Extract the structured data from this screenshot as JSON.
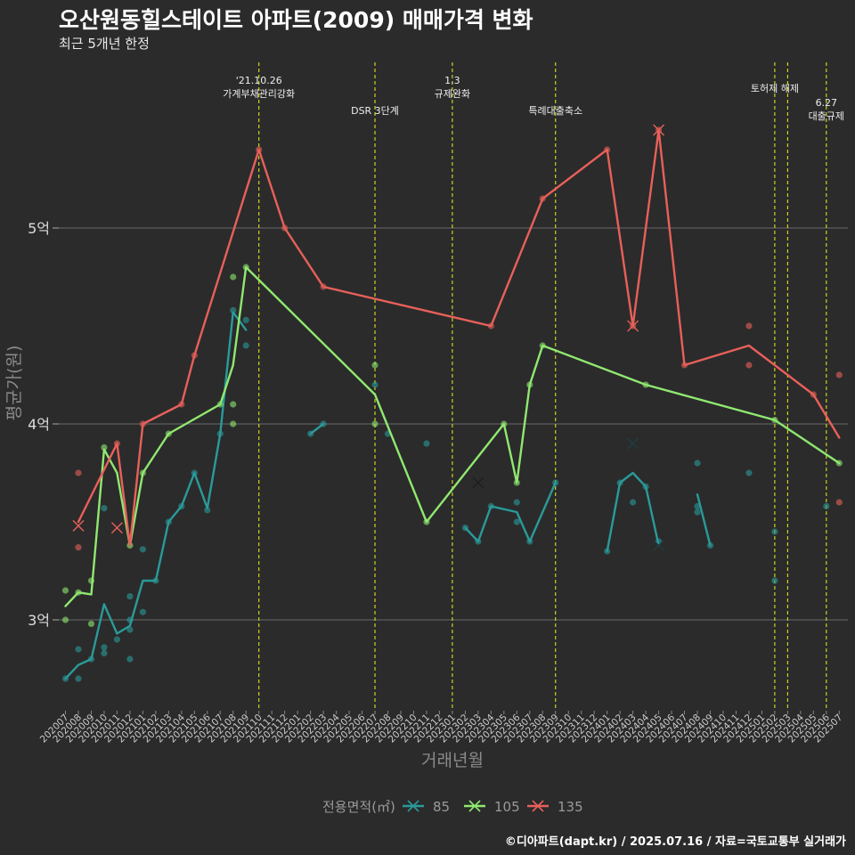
{
  "title": "오산원동힐스테이트 아파트(2009) 매매가격 변화",
  "subtitle": "최근 5개년 한정",
  "caption": "©디아파트(dapt.kr) / 2025.07.16 / 자료=국토교통부 실거래가",
  "colors": {
    "background": "#2b2b2b",
    "grid": "#6a6a6a",
    "event_line": "#d8e020",
    "s85": "#2a9a9a",
    "s105": "#90e870",
    "s135": "#e8605a"
  },
  "chart_data": {
    "type": "line",
    "xlabel": "거래년월",
    "ylabel": "평균가(원)",
    "y_ticks": [
      {
        "value": 3.0,
        "label": "3억"
      },
      {
        "value": 4.0,
        "label": "4억"
      },
      {
        "value": 5.0,
        "label": "5억"
      }
    ],
    "ylim": [
      2.6,
      5.75
    ],
    "grid": true,
    "legend_position": "bottom",
    "legend_title": "전용면적(㎡)",
    "x_labels": [
      "202007",
      "202008",
      "202009",
      "202010",
      "202011",
      "202012",
      "202101",
      "202102",
      "202103",
      "202104",
      "202105",
      "202106",
      "202107",
      "202108",
      "202109",
      "202110",
      "202111",
      "202112",
      "202201",
      "202202",
      "202203",
      "202204",
      "202205",
      "202206",
      "202207",
      "202208",
      "202209",
      "202210",
      "202211",
      "202212",
      "202301",
      "202302",
      "202303",
      "202304",
      "202305",
      "202306",
      "202307",
      "202308",
      "202309",
      "202310",
      "202311",
      "202312",
      "202401",
      "202402",
      "202403",
      "202404",
      "202405",
      "202406",
      "202407",
      "202408",
      "202409",
      "202410",
      "202411",
      "202412",
      "202501",
      "202502",
      "202503",
      "202504",
      "202505",
      "202506",
      "202507"
    ],
    "events": [
      {
        "x": "202110",
        "label": "'21.10.26\n가계부채관리강화",
        "level": 0
      },
      {
        "x": "202207",
        "label": "DSR 3단계",
        "level": 2
      },
      {
        "x": "202301",
        "label": "1.3\n규제완화",
        "level": 0
      },
      {
        "x": "202309",
        "label": "특례대출축소",
        "level": 2
      },
      {
        "x": "202502",
        "label": "토허제 해제",
        "level": 1
      },
      {
        "x": "202503",
        "label": "",
        "level": 1
      },
      {
        "x": "202506",
        "label": "6.27\n대출규제",
        "level": 3
      }
    ],
    "series": [
      {
        "name": "85",
        "color": "#2a9a9a",
        "segments": [
          [
            [
              "202007",
              2.7
            ],
            [
              "202008",
              2.77
            ],
            [
              "202009",
              2.8
            ],
            [
              "202010",
              3.08
            ],
            [
              "202011",
              2.93
            ],
            [
              "202012",
              2.97
            ],
            [
              "202101",
              3.2
            ],
            [
              "202102",
              3.2
            ],
            [
              "202103",
              3.5
            ],
            [
              "202104",
              3.58
            ],
            [
              "202105",
              3.75
            ],
            [
              "202106",
              3.57
            ],
            [
              "202107",
              3.95
            ],
            [
              "202108",
              4.57
            ],
            [
              "202109",
              4.48
            ]
          ],
          [
            [
              "202202",
              3.95
            ],
            [
              "202203",
              4.0
            ]
          ],
          [
            [
              "202302",
              3.47
            ],
            [
              "202303",
              3.4
            ],
            [
              "202304",
              3.58
            ],
            [
              "202306",
              3.55
            ],
            [
              "202307",
              3.4
            ],
            [
              "202309",
              3.7
            ]
          ],
          [
            [
              "202401",
              3.35
            ],
            [
              "202402",
              3.7
            ],
            [
              "202403",
              3.75
            ],
            [
              "202404",
              3.68
            ],
            [
              "202405",
              3.38
            ]
          ],
          [
            [
              "202408",
              3.64
            ],
            [
              "202409",
              3.38
            ]
          ]
        ],
        "points": [
          [
            "202007",
            2.7
          ],
          [
            "202008",
            2.7
          ],
          [
            "202008",
            2.85
          ],
          [
            "202009",
            2.8
          ],
          [
            "202010",
            2.83
          ],
          [
            "202010",
            2.86
          ],
          [
            "202010",
            3.57
          ],
          [
            "202011",
            2.9
          ],
          [
            "202012",
            2.8
          ],
          [
            "202012",
            2.95
          ],
          [
            "202012",
            3.0
          ],
          [
            "202012",
            3.12
          ],
          [
            "202101",
            3.04
          ],
          [
            "202101",
            3.36
          ],
          [
            "202102",
            3.2
          ],
          [
            "202103",
            3.5
          ],
          [
            "202104",
            3.58
          ],
          [
            "202105",
            3.75
          ],
          [
            "202106",
            3.56
          ],
          [
            "202107",
            3.95
          ],
          [
            "202108",
            4.58
          ],
          [
            "202109",
            4.4
          ],
          [
            "202109",
            4.53
          ],
          [
            "202202",
            3.95
          ],
          [
            "202203",
            4.0
          ],
          [
            "202207",
            4.2
          ],
          [
            "202208",
            3.95
          ],
          [
            "202211",
            3.9
          ],
          [
            "202302",
            3.47
          ],
          [
            "202303",
            3.4
          ],
          [
            "202304",
            3.58
          ],
          [
            "202306",
            3.5
          ],
          [
            "202306",
            3.6
          ],
          [
            "202307",
            3.4
          ],
          [
            "202309",
            3.7
          ],
          [
            "202401",
            3.35
          ],
          [
            "202402",
            3.7
          ],
          [
            "202403",
            3.6
          ],
          [
            "202404",
            3.68
          ],
          [
            "202405",
            3.4
          ],
          [
            "202408",
            3.55
          ],
          [
            "202408",
            3.58
          ],
          [
            "202408",
            3.8
          ],
          [
            "202409",
            3.38
          ],
          [
            "202412",
            3.75
          ],
          [
            "202502",
            3.2
          ],
          [
            "202502",
            3.45
          ],
          [
            "202506",
            3.58
          ]
        ],
        "crosses": [
          [
            "202403",
            3.9
          ],
          [
            "202405",
            3.38
          ]
        ]
      },
      {
        "name": "105",
        "color": "#90e870",
        "segments": [
          [
            [
              "202007",
              3.07
            ],
            [
              "202008",
              3.14
            ],
            [
              "202009",
              3.13
            ],
            [
              "202010",
              3.87
            ],
            [
              "202011",
              3.75
            ],
            [
              "202012",
              3.38
            ],
            [
              "202101",
              3.75
            ],
            [
              "202103",
              3.95
            ],
            [
              "202107",
              4.1
            ],
            [
              "202108",
              4.3
            ],
            [
              "202109",
              4.8
            ],
            [
              "202207",
              4.15
            ],
            [
              "202211",
              3.5
            ],
            [
              "202305",
              4.0
            ],
            [
              "202306",
              3.7
            ],
            [
              "202307",
              4.2
            ],
            [
              "202308",
              4.4
            ],
            [
              "202404",
              4.2
            ],
            [
              "202502",
              4.02
            ],
            [
              "202507",
              3.8
            ]
          ]
        ],
        "points": [
          [
            "202007",
            3.0
          ],
          [
            "202007",
            3.15
          ],
          [
            "202008",
            3.14
          ],
          [
            "202009",
            2.98
          ],
          [
            "202009",
            3.2
          ],
          [
            "202010",
            3.88
          ],
          [
            "202012",
            3.38
          ],
          [
            "202101",
            3.75
          ],
          [
            "202103",
            3.95
          ],
          [
            "202107",
            4.1
          ],
          [
            "202108",
            4.0
          ],
          [
            "202108",
            4.1
          ],
          [
            "202108",
            4.75
          ],
          [
            "202109",
            4.8
          ],
          [
            "202207",
            4.0
          ],
          [
            "202207",
            4.3
          ],
          [
            "202211",
            3.5
          ],
          [
            "202305",
            4.0
          ],
          [
            "202306",
            3.7
          ],
          [
            "202307",
            4.2
          ],
          [
            "202308",
            4.4
          ],
          [
            "202404",
            4.2
          ],
          [
            "202502",
            4.02
          ],
          [
            "202507",
            3.8
          ]
        ],
        "crosses": [
          [
            "202303",
            3.7
          ]
        ]
      },
      {
        "name": "135",
        "color": "#e8605a",
        "segments": [
          [
            [
              "202008",
              3.5
            ],
            [
              "202011",
              3.9
            ],
            [
              "202012",
              3.38
            ],
            [
              "202101",
              4.0
            ],
            [
              "202104",
              4.1
            ],
            [
              "202105",
              4.35
            ],
            [
              "202110",
              5.4
            ],
            [
              "202112",
              5.0
            ],
            [
              "202203",
              4.7
            ],
            [
              "202304",
              4.5
            ],
            [
              "202308",
              5.15
            ],
            [
              "202401",
              5.4
            ],
            [
              "202403",
              4.5
            ],
            [
              "202405",
              5.5
            ],
            [
              "202407",
              4.3
            ],
            [
              "202412",
              4.4
            ],
            [
              "202505",
              4.15
            ],
            [
              "202507",
              3.93
            ]
          ]
        ],
        "points": [
          [
            "202008",
            3.37
          ],
          [
            "202008",
            3.75
          ],
          [
            "202011",
            3.9
          ],
          [
            "202101",
            4.0
          ],
          [
            "202104",
            4.1
          ],
          [
            "202105",
            4.35
          ],
          [
            "202110",
            5.4
          ],
          [
            "202112",
            5.0
          ],
          [
            "202203",
            4.7
          ],
          [
            "202304",
            4.5
          ],
          [
            "202308",
            5.15
          ],
          [
            "202401",
            5.4
          ],
          [
            "202403",
            4.5
          ],
          [
            "202405",
            5.5
          ],
          [
            "202407",
            4.3
          ],
          [
            "202412",
            4.3
          ],
          [
            "202412",
            4.5
          ],
          [
            "202505",
            4.15
          ],
          [
            "202507",
            3.6
          ],
          [
            "202507",
            4.25
          ]
        ],
        "crosses": [
          [
            "202008",
            3.48
          ],
          [
            "202011",
            3.47
          ],
          [
            "202403",
            4.5
          ],
          [
            "202405",
            5.5
          ]
        ]
      }
    ]
  }
}
